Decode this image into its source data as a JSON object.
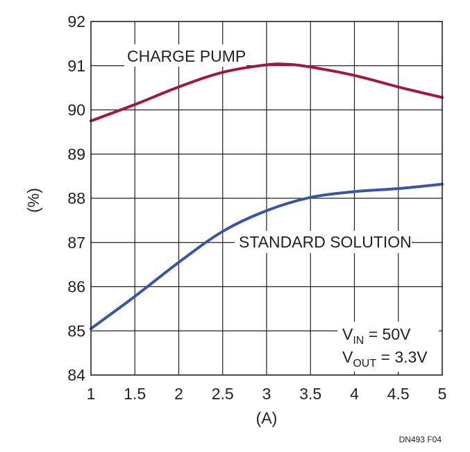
{
  "chart_data": {
    "type": "line",
    "title": "",
    "xlabel": "(A)",
    "ylabel": "(%)",
    "xlim": [
      1,
      5
    ],
    "ylim": [
      84,
      92
    ],
    "xticks": [
      1,
      1.5,
      2,
      2.5,
      3,
      3.5,
      4,
      4.5,
      5
    ],
    "yticks": [
      84,
      85,
      86,
      87,
      88,
      89,
      90,
      91,
      92
    ],
    "xtick_labels": [
      "1",
      "1.5",
      "2",
      "2.5",
      "3",
      "3.5",
      "4",
      "4.5",
      "5"
    ],
    "ytick_labels": [
      "84",
      "85",
      "86",
      "87",
      "88",
      "89",
      "90",
      "91",
      "92"
    ],
    "grid": true,
    "legend": "none",
    "series": [
      {
        "name": "CHARGE PUMP",
        "color": "#a0183e",
        "x": [
          1,
          1.5,
          2,
          2.5,
          3,
          3.25,
          3.5,
          4,
          4.5,
          5
        ],
        "y": [
          89.75,
          90.12,
          90.52,
          90.85,
          91.02,
          91.03,
          90.97,
          90.78,
          90.52,
          90.28
        ]
      },
      {
        "name": "STANDARD SOLUTION",
        "color": "#3a55a4",
        "x": [
          1,
          1.5,
          2,
          2.5,
          3,
          3.5,
          4,
          4.5,
          5
        ],
        "y": [
          85.05,
          85.78,
          86.55,
          87.25,
          87.72,
          88.02,
          88.15,
          88.22,
          88.32
        ]
      }
    ],
    "annotations": {
      "vin_main": "V",
      "vin_sub": "IN",
      "vin_value": " = 50V",
      "vout_main": "V",
      "vout_sub": "OUT",
      "vout_value": " = 3.3V"
    },
    "footer": "DN493 F04"
  }
}
